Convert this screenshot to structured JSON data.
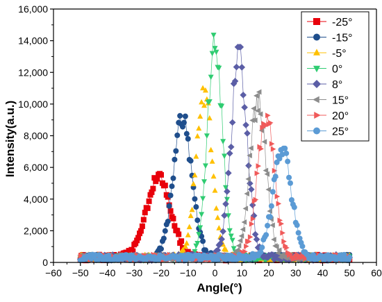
{
  "chart_data": {
    "type": "scatter",
    "title": "",
    "xlabel": "Angle(°)",
    "ylabel": "Intensity(a.u.)",
    "xlim": [
      -60,
      60
    ],
    "ylim": [
      0,
      16000
    ],
    "x_ticks": [
      -60,
      -50,
      -40,
      -30,
      -20,
      -10,
      0,
      10,
      20,
      30,
      40,
      50,
      60
    ],
    "y_ticks": [
      0,
      2000,
      4000,
      6000,
      8000,
      10000,
      12000,
      14000,
      16000
    ],
    "y_tick_labels": [
      "0",
      "2,000",
      "4,000",
      "6,000",
      "8,000",
      "10,000",
      "12,000",
      "14,000",
      "16,000"
    ],
    "grid": false,
    "legend_position": "top-right",
    "x_range": [
      -50,
      50
    ],
    "series": [
      {
        "name": "-25°",
        "color": "#e8000b",
        "marker": "square",
        "peak_x": -21,
        "peak_y": 5600,
        "width": 4.5,
        "line": true
      },
      {
        "name": "-15°",
        "color": "#1f4e8c",
        "marker": "circle",
        "peak_x": -12,
        "peak_y": 9400,
        "width": 3.5,
        "line": true
      },
      {
        "name": "-5°",
        "color": "#ffc000",
        "marker": "triangle-up",
        "peak_x": -4,
        "peak_y": 11000,
        "width": 3.0,
        "line": false
      },
      {
        "name": "0°",
        "color": "#2ecc71",
        "marker": "triangle-down",
        "peak_x": 0,
        "peak_y": 14600,
        "width": 2.8,
        "line": true
      },
      {
        "name": "8°",
        "color": "#5b5ea6",
        "marker": "diamond",
        "peak_x": 9,
        "peak_y": 13600,
        "width": 3.0,
        "line": true
      },
      {
        "name": "15°",
        "color": "#8c8c8c",
        "marker": "triangle-left",
        "peak_x": 16,
        "peak_y": 10800,
        "width": 3.0,
        "line": true
      },
      {
        "name": "20°",
        "color": "#f05a5a",
        "marker": "triangle-right",
        "peak_x": 19,
        "peak_y": 9700,
        "width": 3.2,
        "line": true
      },
      {
        "name": "25°",
        "color": "#5b9bd5",
        "marker": "circle",
        "peak_x": 25,
        "peak_y": 7200,
        "width": 3.5,
        "line": true
      }
    ]
  }
}
